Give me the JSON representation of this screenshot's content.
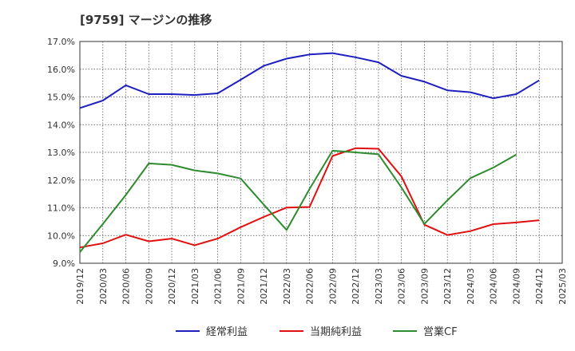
{
  "chart_data": {
    "type": "line",
    "title": "[9759]  マージンの推移",
    "xlabel": "",
    "ylabel": "",
    "ylim": [
      9.0,
      17.0
    ],
    "y_ticks": [
      "9.0%",
      "10.0%",
      "11.0%",
      "12.0%",
      "13.0%",
      "14.0%",
      "15.0%",
      "16.0%",
      "17.0%"
    ],
    "x": [
      "2019/12",
      "2020/03",
      "2020/06",
      "2020/09",
      "2020/12",
      "2021/03",
      "2021/06",
      "2021/09",
      "2021/12",
      "2022/03",
      "2022/06",
      "2022/09",
      "2022/12",
      "2023/03",
      "2023/06",
      "2023/09",
      "2023/12",
      "2024/03",
      "2024/06",
      "2024/09",
      "2024/12",
      "2025/03"
    ],
    "grid": true,
    "legend_position": "bottom",
    "series": [
      {
        "name": "経常利益",
        "color": "#1f1fbf",
        "values": [
          14.6,
          14.87,
          15.42,
          15.1,
          15.1,
          15.07,
          15.13,
          15.62,
          16.12,
          16.38,
          16.53,
          16.58,
          16.43,
          16.25,
          15.76,
          15.55,
          15.24,
          15.17,
          14.95,
          15.1,
          15.6,
          null
        ]
      },
      {
        "name": "当期純利益",
        "color": "#e01010",
        "values": [
          9.57,
          9.72,
          10.03,
          9.79,
          9.89,
          9.65,
          9.89,
          10.3,
          10.67,
          11.01,
          11.03,
          12.87,
          13.15,
          13.13,
          12.13,
          10.39,
          10.02,
          10.16,
          10.41,
          10.47,
          10.55,
          null
        ]
      },
      {
        "name": "営業CF",
        "color": "#2e8b2e",
        "values": [
          9.4,
          10.42,
          11.46,
          12.6,
          12.55,
          12.35,
          12.24,
          12.06,
          11.12,
          10.2,
          11.68,
          13.06,
          13.0,
          12.93,
          11.73,
          10.42,
          11.27,
          12.07,
          12.45,
          12.92,
          null,
          null
        ]
      }
    ]
  }
}
